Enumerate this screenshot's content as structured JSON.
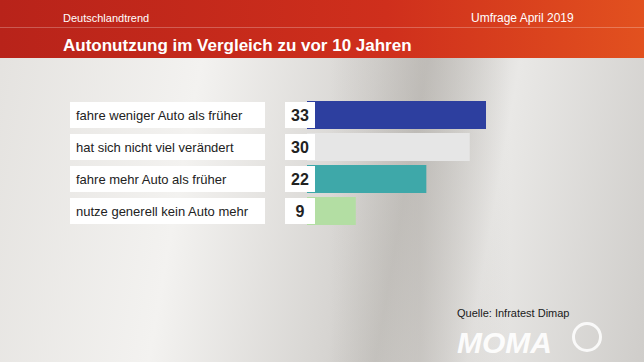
{
  "chart_data": {
    "type": "bar",
    "orientation": "horizontal",
    "subtitle": "Deutschlandtrend",
    "title": "Autonutzung im Vergleich zu vor 10 Jahren",
    "annotations": [
      "Umfrage April 2019",
      "Quelle: Infratest Dimap",
      "MOMA"
    ],
    "categories": [
      "fahre weniger Auto als früher",
      "hat sich nicht viel verändert",
      "fahre mehr Auto als früher",
      "nutze generell kein Auto mehr"
    ],
    "values": [
      33,
      30,
      22,
      9
    ],
    "colors": [
      "#2d3f9f",
      "#e6e6e6",
      "#3ea8a9",
      "#b3dea3"
    ],
    "xlim": [
      0,
      33
    ],
    "data_labels": true,
    "tick_labels": false,
    "grid": false
  }
}
